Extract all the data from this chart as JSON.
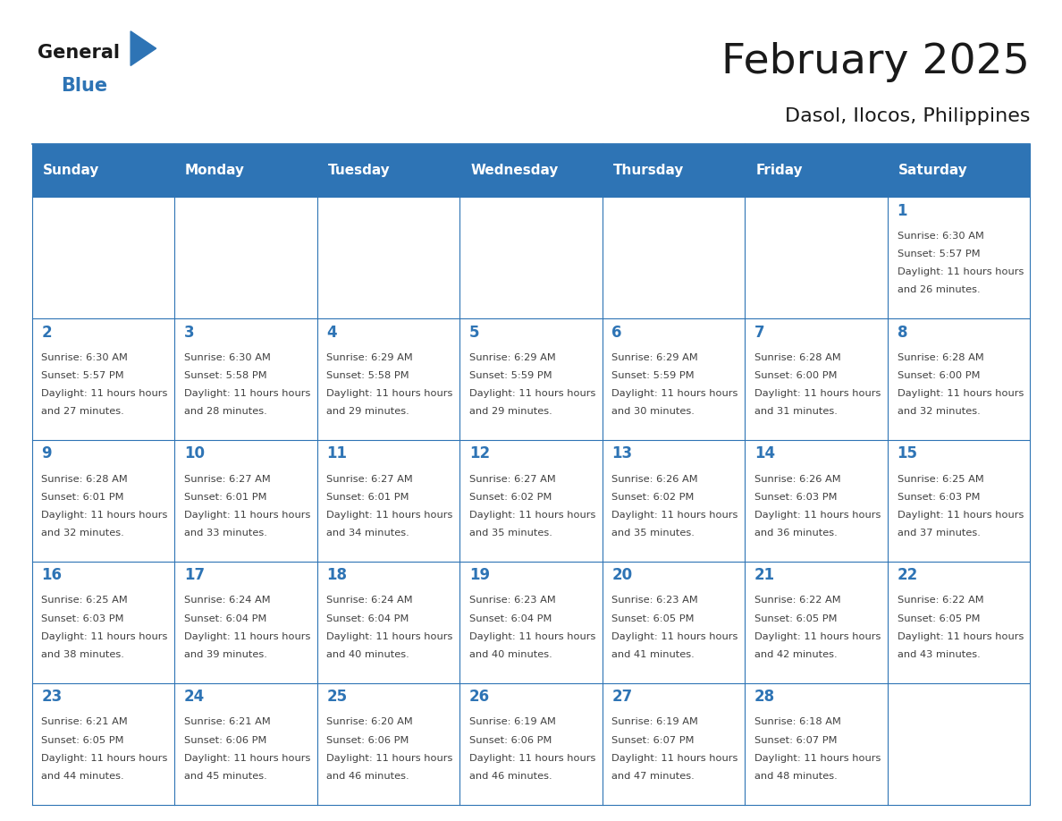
{
  "title": "February 2025",
  "subtitle": "Dasol, Ilocos, Philippines",
  "days_of_week": [
    "Sunday",
    "Monday",
    "Tuesday",
    "Wednesday",
    "Thursday",
    "Friday",
    "Saturday"
  ],
  "header_bg_color": "#2E74B5",
  "header_text_color": "#FFFFFF",
  "cell_bg_color": "#FFFFFF",
  "border_color": "#2E74B5",
  "day_number_color": "#2E74B5",
  "cell_text_color": "#404040",
  "title_color": "#1a1a1a",
  "subtitle_color": "#1a1a1a",
  "logo_general_color": "#1a1a1a",
  "logo_blue_color": "#2E74B5",
  "calendar_data": [
    [
      null,
      null,
      null,
      null,
      null,
      null,
      1
    ],
    [
      2,
      3,
      4,
      5,
      6,
      7,
      8
    ],
    [
      9,
      10,
      11,
      12,
      13,
      14,
      15
    ],
    [
      16,
      17,
      18,
      19,
      20,
      21,
      22
    ],
    [
      23,
      24,
      25,
      26,
      27,
      28,
      null
    ]
  ],
  "sunrise_data": {
    "1": "6:30 AM",
    "2": "6:30 AM",
    "3": "6:30 AM",
    "4": "6:29 AM",
    "5": "6:29 AM",
    "6": "6:29 AM",
    "7": "6:28 AM",
    "8": "6:28 AM",
    "9": "6:28 AM",
    "10": "6:27 AM",
    "11": "6:27 AM",
    "12": "6:27 AM",
    "13": "6:26 AM",
    "14": "6:26 AM",
    "15": "6:25 AM",
    "16": "6:25 AM",
    "17": "6:24 AM",
    "18": "6:24 AM",
    "19": "6:23 AM",
    "20": "6:23 AM",
    "21": "6:22 AM",
    "22": "6:22 AM",
    "23": "6:21 AM",
    "24": "6:21 AM",
    "25": "6:20 AM",
    "26": "6:19 AM",
    "27": "6:19 AM",
    "28": "6:18 AM"
  },
  "sunset_data": {
    "1": "5:57 PM",
    "2": "5:57 PM",
    "3": "5:58 PM",
    "4": "5:58 PM",
    "5": "5:59 PM",
    "6": "5:59 PM",
    "7": "6:00 PM",
    "8": "6:00 PM",
    "9": "6:01 PM",
    "10": "6:01 PM",
    "11": "6:01 PM",
    "12": "6:02 PM",
    "13": "6:02 PM",
    "14": "6:03 PM",
    "15": "6:03 PM",
    "16": "6:03 PM",
    "17": "6:04 PM",
    "18": "6:04 PM",
    "19": "6:04 PM",
    "20": "6:05 PM",
    "21": "6:05 PM",
    "22": "6:05 PM",
    "23": "6:05 PM",
    "24": "6:06 PM",
    "25": "6:06 PM",
    "26": "6:06 PM",
    "27": "6:07 PM",
    "28": "6:07 PM"
  },
  "daylight_data": {
    "1": "11 hours and 26 minutes.",
    "2": "11 hours and 27 minutes.",
    "3": "11 hours and 28 minutes.",
    "4": "11 hours and 29 minutes.",
    "5": "11 hours and 29 minutes.",
    "6": "11 hours and 30 minutes.",
    "7": "11 hours and 31 minutes.",
    "8": "11 hours and 32 minutes.",
    "9": "11 hours and 32 minutes.",
    "10": "11 hours and 33 minutes.",
    "11": "11 hours and 34 minutes.",
    "12": "11 hours and 35 minutes.",
    "13": "11 hours and 35 minutes.",
    "14": "11 hours and 36 minutes.",
    "15": "11 hours and 37 minutes.",
    "16": "11 hours and 38 minutes.",
    "17": "11 hours and 39 minutes.",
    "18": "11 hours and 40 minutes.",
    "19": "11 hours and 40 minutes.",
    "20": "11 hours and 41 minutes.",
    "21": "11 hours and 42 minutes.",
    "22": "11 hours and 43 minutes.",
    "23": "11 hours and 44 minutes.",
    "24": "11 hours and 45 minutes.",
    "25": "11 hours and 46 minutes.",
    "26": "11 hours and 46 minutes.",
    "27": "11 hours and 47 minutes.",
    "28": "11 hours and 48 minutes."
  }
}
